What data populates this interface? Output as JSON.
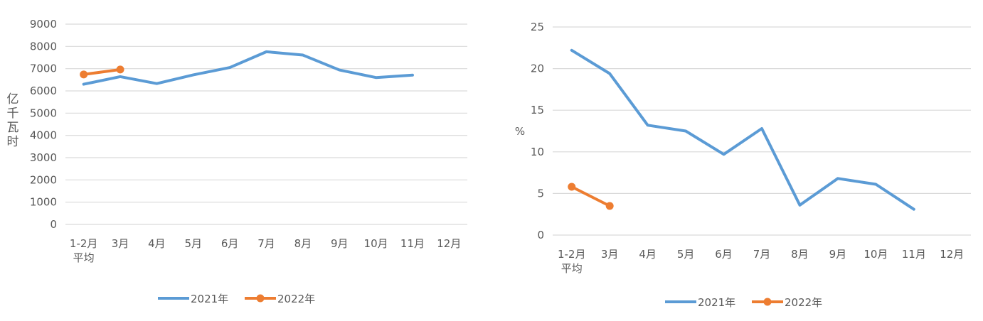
{
  "chart_data": [
    {
      "type": "line",
      "title": "",
      "xlabel": "",
      "ylabel": "亿千瓦时",
      "categories": [
        "1-2月\n平均",
        "3月",
        "4月",
        "5月",
        "6月",
        "7月",
        "8月",
        "9月",
        "10月",
        "11月",
        "12月"
      ],
      "ylim": [
        0,
        9000
      ],
      "yticks": [
        0,
        1000,
        2000,
        3000,
        4000,
        5000,
        6000,
        7000,
        8000,
        9000
      ],
      "grid": true,
      "legend_position": "bottom",
      "series": [
        {
          "name": "2021年",
          "color": "#5b9bd5",
          "markers": false,
          "values": [
            6300,
            6640,
            6330,
            6720,
            7050,
            7760,
            7610,
            6940,
            6600,
            6710,
            null
          ]
        },
        {
          "name": "2022年",
          "color": "#ed7d31",
          "markers": true,
          "values": [
            6740,
            6960,
            null,
            null,
            null,
            null,
            null,
            null,
            null,
            null,
            null
          ]
        }
      ]
    },
    {
      "type": "line",
      "title": "",
      "xlabel": "",
      "ylabel": "%",
      "categories": [
        "1-2月\n平均",
        "3月",
        "4月",
        "5月",
        "6月",
        "7月",
        "8月",
        "9月",
        "10月",
        "11月",
        "12月"
      ],
      "ylim": [
        0,
        25
      ],
      "yticks": [
        0,
        5,
        10,
        15,
        20,
        25
      ],
      "grid": true,
      "legend_position": "bottom",
      "series": [
        {
          "name": "2021年",
          "color": "#5b9bd5",
          "markers": false,
          "values": [
            22.2,
            19.4,
            13.2,
            12.5,
            9.7,
            12.8,
            3.6,
            6.8,
            6.1,
            3.1,
            null
          ]
        },
        {
          "name": "2022年",
          "color": "#ed7d31",
          "markers": true,
          "values": [
            5.8,
            3.5,
            null,
            null,
            null,
            null,
            null,
            null,
            null,
            null,
            null
          ]
        }
      ]
    }
  ]
}
